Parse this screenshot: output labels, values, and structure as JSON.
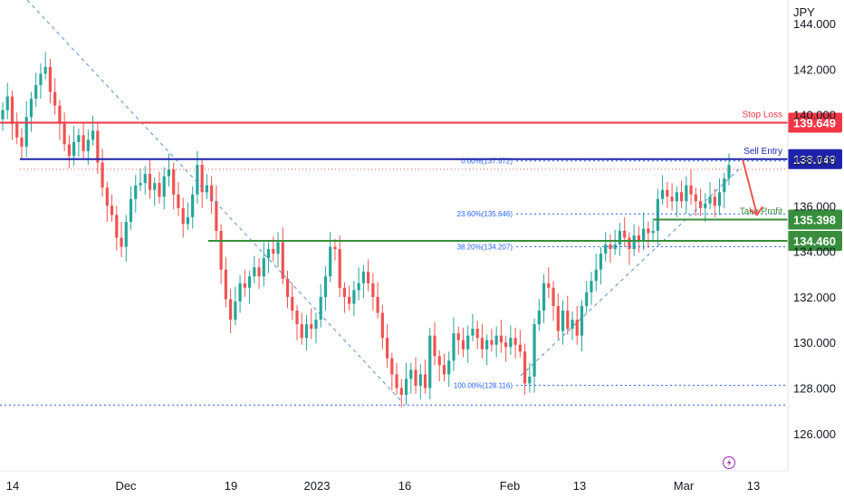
{
  "symbol_currency": "JPY",
  "colors": {
    "up": "#26a69a",
    "down": "#ef5350",
    "stop_loss": "#f23645",
    "sell_entry": "#1e22aa",
    "take_profit": "#388e3c",
    "fib": "#2962ff",
    "trend": "#5b8fd6"
  },
  "chart_data": {
    "type": "candlestick",
    "title": "",
    "ylabel": "JPY",
    "ylim": [
      124.8,
      144.6
    ],
    "y_ticks": [
      "144.000",
      "142.000",
      "140.000",
      "138.000",
      "136.000",
      "134.000",
      "132.000",
      "130.000",
      "128.000",
      "126.000"
    ],
    "x_ticks": [
      "14",
      "Dec",
      "19",
      "2023",
      "16",
      "Feb",
      "13",
      "Mar",
      "13"
    ],
    "close_series": [
      140.2,
      140.8,
      139.6,
      139.0,
      138.6,
      139.9,
      140.7,
      141.3,
      141.8,
      142.1,
      141.0,
      140.4,
      139.6,
      138.7,
      138.2,
      138.8,
      139.1,
      138.4,
      138.9,
      139.3,
      137.9,
      136.8,
      136.0,
      135.6,
      134.6,
      134.2,
      135.3,
      136.3,
      136.9,
      137.0,
      137.4,
      136.7,
      137.0,
      136.4,
      137.3,
      137.6,
      136.5,
      135.9,
      135.2,
      135.5,
      136.5,
      137.8,
      136.6,
      136.9,
      136.2,
      134.9,
      133.2,
      131.9,
      131.0,
      131.8,
      132.6,
      132.4,
      132.9,
      133.3,
      132.9,
      133.7,
      134.1,
      133.9,
      134.4,
      132.8,
      132.0,
      131.4,
      130.8,
      130.2,
      130.8,
      130.6,
      131.0,
      132.0,
      132.9,
      134.2,
      134.1,
      132.4,
      132.0,
      131.7,
      132.3,
      132.6,
      133.1,
      132.6,
      132.0,
      131.3,
      130.2,
      129.3,
      128.6,
      128.0,
      127.7,
      128.4,
      128.8,
      128.1,
      128.6,
      128.0,
      130.3,
      129.4,
      129.0,
      128.6,
      129.2,
      130.4,
      130.1,
      129.7,
      130.3,
      130.6,
      130.2,
      129.7,
      130.1,
      129.9,
      130.3,
      130.0,
      129.8,
      130.2,
      129.9,
      129.6,
      128.2,
      128.5,
      130.8,
      131.4,
      132.6,
      132.4,
      131.6,
      130.5,
      131.4,
      130.6,
      131.0,
      130.3,
      131.6,
      132.2,
      132.7,
      133.2,
      133.9,
      134.3,
      134.1,
      134.3,
      134.9,
      134.6,
      134.1,
      134.7,
      134.5,
      135.0,
      134.8,
      134.9,
      136.3,
      136.7,
      136.4,
      136.2,
      136.6,
      136.2,
      136.9,
      136.5,
      136.2,
      135.9,
      136.1,
      136.4,
      136.0,
      136.6,
      137.2,
      137.8
    ],
    "levels": [
      {
        "name": "Stop Loss",
        "value": "139.649"
      },
      {
        "name": "Sell Entry",
        "value": "138.049"
      },
      {
        "name": "Take Profit",
        "value": "135.398"
      },
      {
        "name": "",
        "value": "134.460"
      }
    ],
    "fib_labels": [
      {
        "label": "0.00%(137.972)",
        "value": 137.972
      },
      {
        "label": "23.60%(135.646)",
        "value": 135.646
      },
      {
        "label": "38.20%(134.207)",
        "value": 134.207
      },
      {
        "label": "100.00%(128.116)",
        "value": 128.116
      }
    ],
    "horizontal_dotted": [
      137.6,
      127.25
    ],
    "arrow_target": 135.6
  },
  "axis": {
    "currency_label": "JPY"
  },
  "icons": {
    "bottom_right": "lightning-icon"
  }
}
